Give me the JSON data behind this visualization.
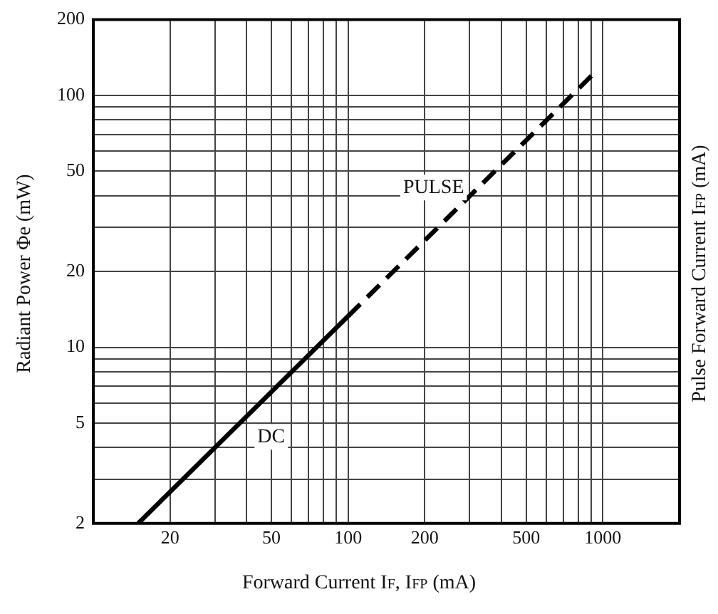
{
  "chart_data": {
    "type": "line",
    "xlabel": "Forward Current I$_{F}$, I$_{FP}$ (mA)",
    "ylabel": "Radiant Power Φe (mW)",
    "y2label": "Pulse Forward Current I$_{FP}$ (mA)",
    "log": "xy",
    "xlim": [
      10,
      2000
    ],
    "ylim": [
      2,
      200
    ],
    "xticks": [
      20,
      {
        "value": 30,
        "label": null
      },
      {
        "value": 40,
        "label": null
      },
      50,
      {
        "value": 60,
        "label": null
      },
      {
        "value": 70,
        "label": null
      },
      {
        "value": 80,
        "label": null
      },
      {
        "value": 90,
        "label": null
      },
      100,
      200,
      {
        "value": 300,
        "label": null
      },
      {
        "value": 400,
        "label": null
      },
      500,
      {
        "value": 600,
        "label": null
      },
      {
        "value": 700,
        "label": null
      },
      {
        "value": 800,
        "label": null
      },
      {
        "value": 900,
        "label": null
      },
      1000
    ],
    "yticks": [
      2,
      {
        "value": 3,
        "label": null
      },
      {
        "value": 4,
        "label": null
      },
      5,
      {
        "value": 6,
        "label": null
      },
      {
        "value": 7,
        "label": null
      },
      {
        "value": 8,
        "label": null
      },
      {
        "value": 9,
        "label": null
      },
      10,
      20,
      {
        "value": 30,
        "label": null
      },
      {
        "value": 40,
        "label": null
      },
      50,
      {
        "value": 60,
        "label": null
      },
      {
        "value": 70,
        "label": null
      },
      {
        "value": 80,
        "label": null
      },
      {
        "value": 90,
        "label": null
      },
      100,
      200
    ],
    "grid": true,
    "legend": false,
    "marker": "none",
    "series": [
      {
        "name": "DC",
        "color": "#000000",
        "line_style": "solid",
        "x": [
          15,
          100
        ],
        "values": [
          2,
          13.3
        ]
      },
      {
        "name": "PULSE",
        "color": "#000000",
        "line_style": "dashed",
        "x": [
          100,
          950
        ],
        "values": [
          13.3,
          126
        ]
      }
    ]
  }
}
